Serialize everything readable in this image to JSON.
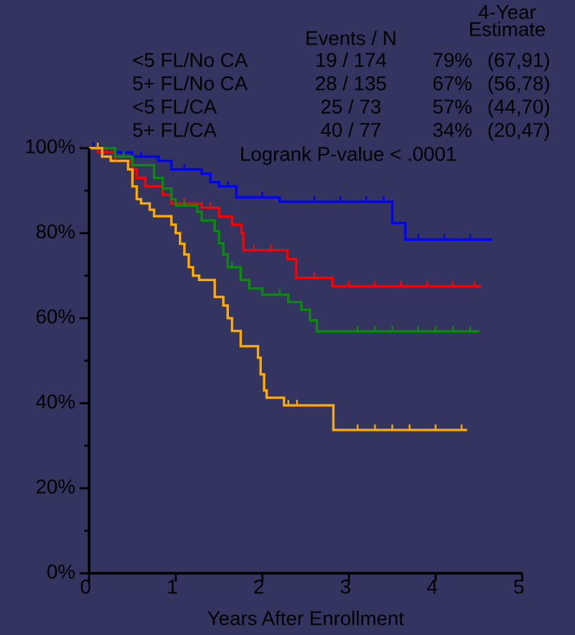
{
  "chart_data": {
    "type": "step",
    "x_label": "Years After Enrollment",
    "header": {
      "events": "Events / N",
      "estimate_top": "4-Year",
      "estimate_bottom": "Estimate"
    },
    "annotation": "Logrank P-value < .0001",
    "xlim": [
      0,
      5
    ],
    "xticks": [
      0,
      1,
      2,
      3,
      4,
      5
    ],
    "ylim": [
      0,
      100
    ],
    "yticks": [
      {
        "value": 0,
        "label": "0%"
      },
      {
        "value": 20,
        "label": "20%"
      },
      {
        "value": 40,
        "label": "40%"
      },
      {
        "value": 60,
        "label": "60%"
      },
      {
        "value": 80,
        "label": "80%"
      },
      {
        "value": 100,
        "label": "100%"
      }
    ],
    "yminorticks": [
      10,
      30,
      50,
      70,
      90
    ],
    "series": [
      {
        "name": "<5 FL/No CA",
        "color": "#0000ff",
        "events": "19 / 174",
        "estimate": "79%",
        "ci": "(67,91)",
        "x": [
          0,
          0.3,
          0.5,
          0.8,
          0.95,
          1.3,
          1.4,
          1.5,
          1.7,
          2.2,
          3.5,
          3.65,
          4.64
        ],
        "values": [
          100,
          99,
          98,
          97,
          95,
          94,
          92,
          91,
          88.4,
          87.4,
          82.4,
          78.5,
          78.5
        ],
        "censored": [
          0.05,
          0.6,
          1.1,
          1.6,
          2.0,
          2.6,
          2.9,
          3.2,
          3.4,
          3.8,
          4.1,
          4.4
        ]
      },
      {
        "name": "5+ FL/No CA",
        "color": "#ff0000",
        "events": "28 / 135",
        "estimate": "67%",
        "ci": "(56,78)",
        "x": [
          0,
          0.1,
          0.3,
          0.5,
          0.55,
          0.65,
          0.85,
          0.95,
          1.3,
          1.5,
          1.65,
          1.76,
          1.78,
          2.29,
          2.39,
          2.81,
          4.51
        ],
        "values": [
          100,
          99,
          97,
          95,
          93,
          91,
          89,
          87,
          86,
          83.9,
          82,
          80,
          76,
          73.9,
          69.5,
          67.5,
          67.5
        ],
        "censored": [
          0.2,
          1.1,
          1.4,
          1.9,
          2.1,
          2.6,
          3.0,
          3.3,
          3.6,
          3.9,
          4.2,
          4.45
        ]
      },
      {
        "name": "<5 FL/CA",
        "color": "#0a8a0a",
        "events": "25 / 73",
        "estimate": "57%",
        "ci": "(44,70)",
        "x": [
          0,
          0.3,
          0.5,
          0.75,
          0.85,
          0.95,
          1.0,
          1.25,
          1.3,
          1.45,
          1.5,
          1.55,
          1.6,
          1.75,
          1.85,
          2.0,
          2.3,
          2.45,
          2.55,
          2.63,
          4.49
        ],
        "values": [
          100,
          98,
          96,
          93,
          90.5,
          88,
          86.5,
          85,
          83,
          80.5,
          77.6,
          75,
          72,
          69,
          67,
          65.5,
          63.8,
          62,
          59.5,
          56.9,
          56.9
        ],
        "censored": [
          0.4,
          1.1,
          1.65,
          2.2,
          3.1,
          3.3,
          3.5,
          3.8,
          4.0,
          4.2,
          4.4
        ]
      },
      {
        "name": "5+ FL/CA",
        "color": "#ffaa00",
        "events": "40 / 77",
        "estimate": "34%",
        "ci": "(20,47)",
        "x": [
          0,
          0.15,
          0.25,
          0.45,
          0.5,
          0.55,
          0.6,
          0.7,
          0.75,
          0.95,
          1.0,
          1.05,
          1.1,
          1.15,
          1.2,
          1.27,
          1.45,
          1.55,
          1.6,
          1.65,
          1.75,
          1.95,
          1.98,
          2.02,
          2.05,
          2.25,
          2.82,
          4.35
        ],
        "values": [
          100,
          98,
          97,
          95,
          91,
          88,
          87,
          85.5,
          84,
          82,
          80,
          77.5,
          75,
          72,
          70,
          69,
          65,
          63,
          60,
          57,
          53.4,
          50.7,
          46.8,
          43,
          41.3,
          39.5,
          33.7,
          33.7
        ],
        "censored": [
          0.1,
          2.3,
          2.4,
          3.1,
          3.3,
          3.5,
          3.7,
          4.0,
          4.3
        ]
      }
    ]
  }
}
